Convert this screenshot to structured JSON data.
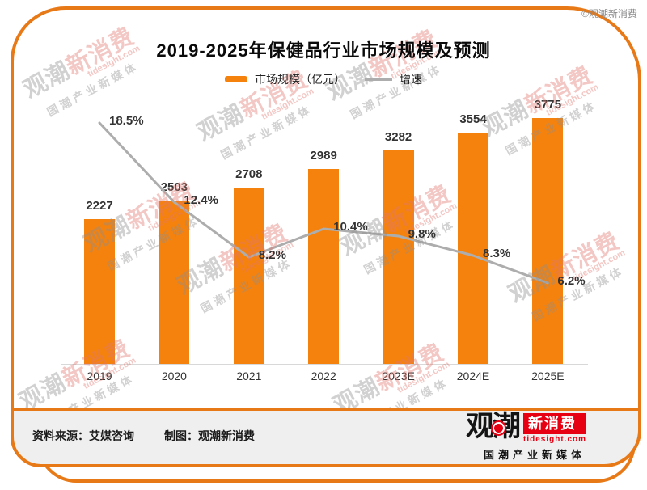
{
  "page": {
    "copyright": "©观潮新消费"
  },
  "header": {
    "title": "2019-2025年保健品行业市场规模及预测"
  },
  "legend": {
    "bar_label": "市场规模（亿元）",
    "line_label": "增速"
  },
  "chart_data": {
    "type": "bar",
    "title": "2019-2025年保健品行业市场规模及预测",
    "categories": [
      "2019",
      "2020",
      "2021",
      "2022",
      "2023E",
      "2024E",
      "2025E"
    ],
    "series": [
      {
        "name": "市场规模（亿元）",
        "type": "bar",
        "unit": "亿元",
        "values": [
          2227,
          2503,
          2708,
          2989,
          3282,
          3554,
          3775
        ],
        "color": "#F5820D"
      },
      {
        "name": "增速",
        "type": "line",
        "unit": "%",
        "values": [
          18.5,
          12.4,
          8.2,
          10.4,
          9.8,
          8.3,
          6.2
        ],
        "color": "#ADADAD"
      }
    ],
    "legend_position": "top",
    "xlabel": "",
    "ylabel": "",
    "ylim": [
      0,
      4000
    ],
    "y2lim": [
      0,
      28
    ],
    "grid": false
  },
  "footer": {
    "source": "资料来源：艾媒咨询",
    "credit": "制图：观潮新消费"
  },
  "logo": {
    "name_black": "观潮",
    "name_red": "新消费",
    "domain": "tidesight.com",
    "tagline": "国潮产业新媒体"
  },
  "watermark": {
    "name_gray": "观潮",
    "name_red": "新消费",
    "domain": "tidesight.com",
    "tagline": "国潮产业新媒体"
  },
  "colors": {
    "bar": "#F5820D",
    "line": "#ADADAD",
    "frame": "#E87917",
    "footer_bg": "#EFEFEF",
    "logo_red": "#E60012",
    "axis": "#D8D8D8"
  }
}
